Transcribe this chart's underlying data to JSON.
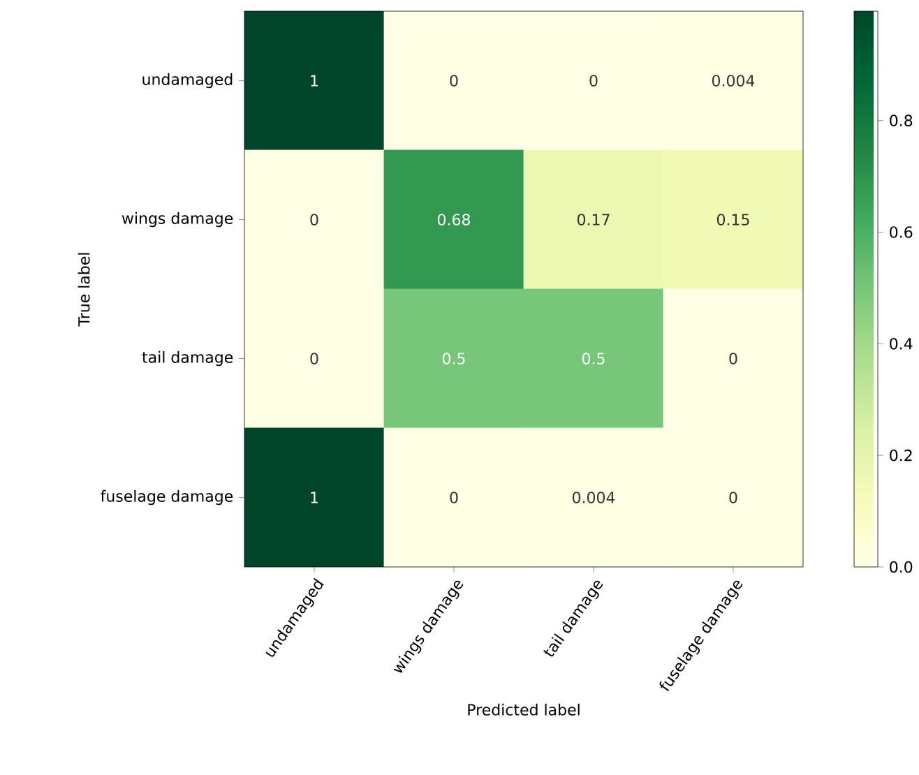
{
  "chart_data": {
    "type": "heatmap",
    "xlabel": "Predicted label",
    "ylabel": "True label",
    "categories": [
      "undamaged",
      "wings damage",
      "tail damage",
      "fuselage damage"
    ],
    "y_categories": [
      "undamaged",
      "wings damage",
      "tail damage",
      "fuselage damage"
    ],
    "cells": [
      [
        0.996,
        0,
        0,
        0.004
      ],
      [
        0,
        0.68,
        0.17,
        0.15
      ],
      [
        0,
        0.5,
        0.5,
        0
      ],
      [
        0.996,
        0,
        0.004,
        0
      ]
    ],
    "cell_labels": [
      [
        "1",
        "0",
        "0",
        "0.004"
      ],
      [
        "0",
        "0.68",
        "0.17",
        "0.15"
      ],
      [
        "0",
        "0.5",
        "0.5",
        "0"
      ],
      [
        "1",
        "0",
        "0.004",
        "0"
      ]
    ],
    "clim": [
      0,
      0.996
    ],
    "cticks": [
      {
        "value": 0,
        "label": "0.0"
      },
      0.2,
      0.4,
      0.6,
      0.8
    ]
  }
}
